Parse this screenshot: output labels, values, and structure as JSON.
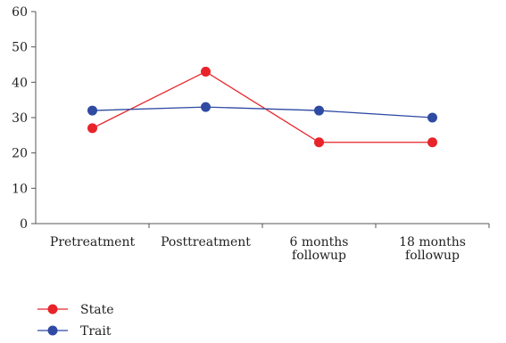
{
  "chart_data": {
    "type": "line",
    "title": "",
    "xlabel": "",
    "ylabel": "",
    "categories": [
      [
        "Pretreatment"
      ],
      [
        "Posttreatment"
      ],
      [
        "6 months",
        "followup"
      ],
      [
        "18 months",
        "followup"
      ]
    ],
    "ylim": [
      0,
      60
    ],
    "yticks": [
      0,
      10,
      20,
      30,
      40,
      50,
      60
    ],
    "grid": false,
    "legend_position": "bottom-left",
    "series": [
      {
        "name": "State",
        "color": "#e8232a",
        "values": [
          27,
          43,
          23,
          23
        ]
      },
      {
        "name": "Trait",
        "color": "#2e4aa3",
        "values": [
          32,
          33,
          32,
          30
        ]
      }
    ]
  }
}
